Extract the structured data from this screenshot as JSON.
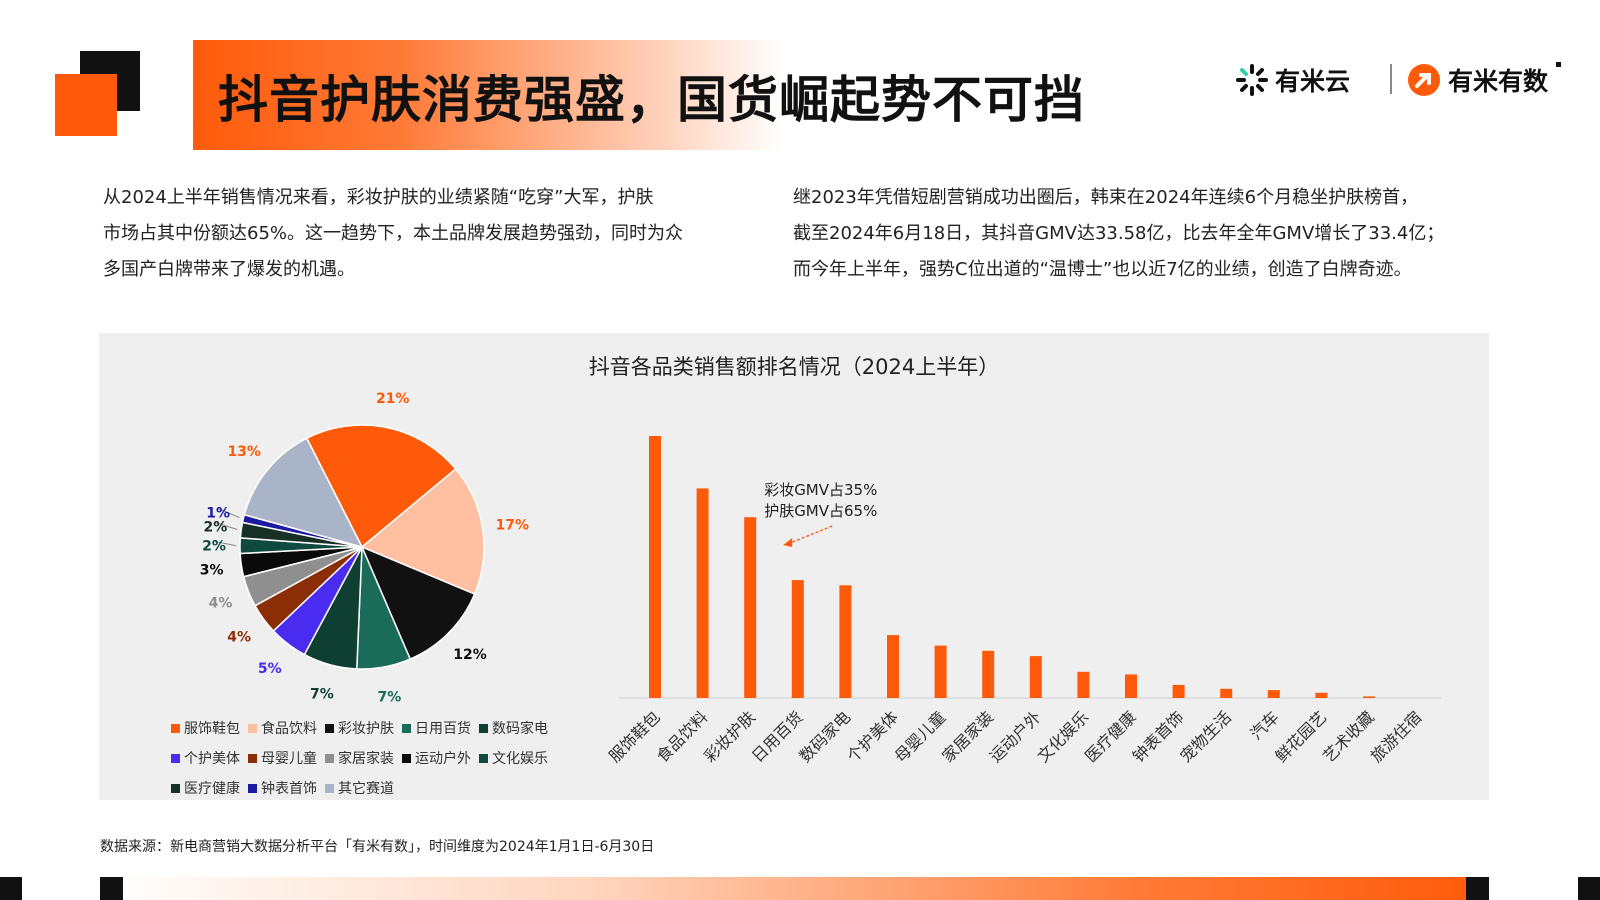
{
  "header": {
    "title": "抖音护肤消费强盛，国货崛起势不可挡",
    "brand_1": "有米云",
    "brand_2": "有米有数"
  },
  "intro": {
    "left_lines": [
      "从2024上半年销售情况来看，彩妆护肤的业绩紧随“吃穿”大军，护肤",
      "市场占其中份额达65%。这一趋势下，本土品牌发展趋势强劲，同时为众",
      "多国产白牌带来了爆发的机遇。"
    ],
    "right_lines": [
      "继2023年凭借短剧营销成功出圈后，韩束在2024年连续6个月稳坐护肤榜首，",
      "截至2024年6月18日，其抖音GMV达33.58亿，比去年全年GMV增长了33.4亿；",
      "而今年上半年，强势C位出道的“温博士”也以近7亿的业绩，创造了白牌奇迹。"
    ]
  },
  "source_text": "数据来源：新电商营销大数据分析平台「有米有数」，时间维度为2024年1月1日-6月30日",
  "chart_data": [
    {
      "type": "pie",
      "title": "抖音各品类销售额排名情况（2024上半年）",
      "slices": [
        {
          "name": "服饰鞋包",
          "value": 21,
          "label": "21%",
          "color": "#ff5a0a"
        },
        {
          "name": "食品饮料",
          "value": 17,
          "label": "17%",
          "color": "#ffbfa0"
        },
        {
          "name": "彩妆护肤",
          "value": 12,
          "label": "12%",
          "color": "#111111"
        },
        {
          "name": "日用百货",
          "value": 7,
          "label": "7%",
          "color": "#1b6b59"
        },
        {
          "name": "数码家电",
          "value": 7,
          "label": "7%",
          "color": "#0f3f33"
        },
        {
          "name": "个护美体",
          "value": 5,
          "label": "5%",
          "color": "#4a2cf0"
        },
        {
          "name": "母婴儿童",
          "value": 4,
          "label": "4%",
          "color": "#8b2e06"
        },
        {
          "name": "家居家装",
          "value": 4,
          "label": "4%",
          "color": "#8f8f8f"
        },
        {
          "name": "运动户外",
          "value": 3,
          "label": "3%",
          "color": "#0a0a0a"
        },
        {
          "name": "文化娱乐",
          "value": 2,
          "label": "2%",
          "color": "#0f4a3e"
        },
        {
          "name": "医疗健康",
          "value": 2,
          "label": "2%",
          "color": "#163026"
        },
        {
          "name": "钟表首饰",
          "value": 1,
          "label": "1%",
          "color": "#1a1aa0"
        },
        {
          "name": "其它赛道",
          "value": 13,
          "label": "13%",
          "color": "#aab4c8"
        }
      ],
      "label_colors": [
        "#ff5a0a",
        "#ff5a0a",
        "#111111",
        "#1b6b59",
        "#0f3f33",
        "#4a2cf0",
        "#8b2e06",
        "#8f8f8f",
        "#0a0a0a",
        "#0f4a3e",
        "#163026",
        "#1a1aa0",
        "#ff5a0a"
      ]
    },
    {
      "type": "bar",
      "categories": [
        "服饰鞋包",
        "食品饮料",
        "彩妆护肤",
        "日用百货",
        "数码家电",
        "个护美体",
        "母婴儿童",
        "家居家装",
        "运动户外",
        "文化娱乐",
        "医疗健康",
        "钟表首饰",
        "宠物生活",
        "汽车",
        "鲜花园艺",
        "艺术收藏",
        "旅游住宿"
      ],
      "values": [
        100,
        80,
        69,
        45,
        43,
        24,
        20,
        18,
        16,
        10,
        9,
        5,
        3.5,
        3,
        2,
        0.6,
        0
      ],
      "color": "#ff5a0a",
      "ylim": [
        0,
        100
      ],
      "annotation": {
        "lines": [
          "彩妆GMV占35%",
          "护肤GMV占65%"
        ],
        "target": "彩妆护肤"
      }
    }
  ]
}
